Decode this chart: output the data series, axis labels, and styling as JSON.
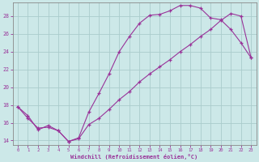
{
  "xlabel": "Windchill (Refroidissement éolien,°C)",
  "bg_color": "#cce8e8",
  "line_color": "#993399",
  "grid_color": "#aacccc",
  "xlim": [
    -0.5,
    23.5
  ],
  "ylim": [
    13.5,
    29.5
  ],
  "xticks": [
    0,
    1,
    2,
    3,
    4,
    5,
    6,
    7,
    8,
    9,
    10,
    11,
    12,
    13,
    14,
    15,
    16,
    17,
    18,
    19,
    20,
    21,
    22,
    23
  ],
  "yticks": [
    14,
    16,
    18,
    20,
    22,
    24,
    26,
    28
  ],
  "line1_x": [
    0,
    1,
    2,
    3,
    4,
    5,
    6,
    7,
    8,
    9,
    10,
    11,
    12,
    13,
    14,
    15,
    16,
    17,
    18,
    19,
    20,
    21,
    22,
    23
  ],
  "line1_y": [
    17.8,
    16.8,
    15.2,
    15.7,
    15.1,
    13.9,
    14.3,
    17.2,
    19.3,
    21.5,
    24.0,
    25.7,
    27.2,
    28.1,
    28.2,
    28.6,
    29.2,
    29.2,
    28.9,
    27.8,
    27.6,
    26.5,
    25.0,
    23.3
  ],
  "line2_x": [
    0,
    1,
    2,
    3,
    4,
    5,
    6,
    7,
    8,
    9,
    10,
    11,
    12,
    13,
    14,
    15,
    16,
    17,
    18,
    19,
    20,
    21,
    22,
    23
  ],
  "line2_y": [
    17.8,
    16.5,
    15.4,
    15.5,
    15.1,
    13.9,
    14.2,
    15.8,
    16.5,
    17.5,
    18.6,
    19.5,
    20.6,
    21.5,
    22.3,
    23.1,
    24.0,
    24.8,
    25.7,
    26.5,
    27.5,
    28.3,
    28.0,
    23.3
  ]
}
